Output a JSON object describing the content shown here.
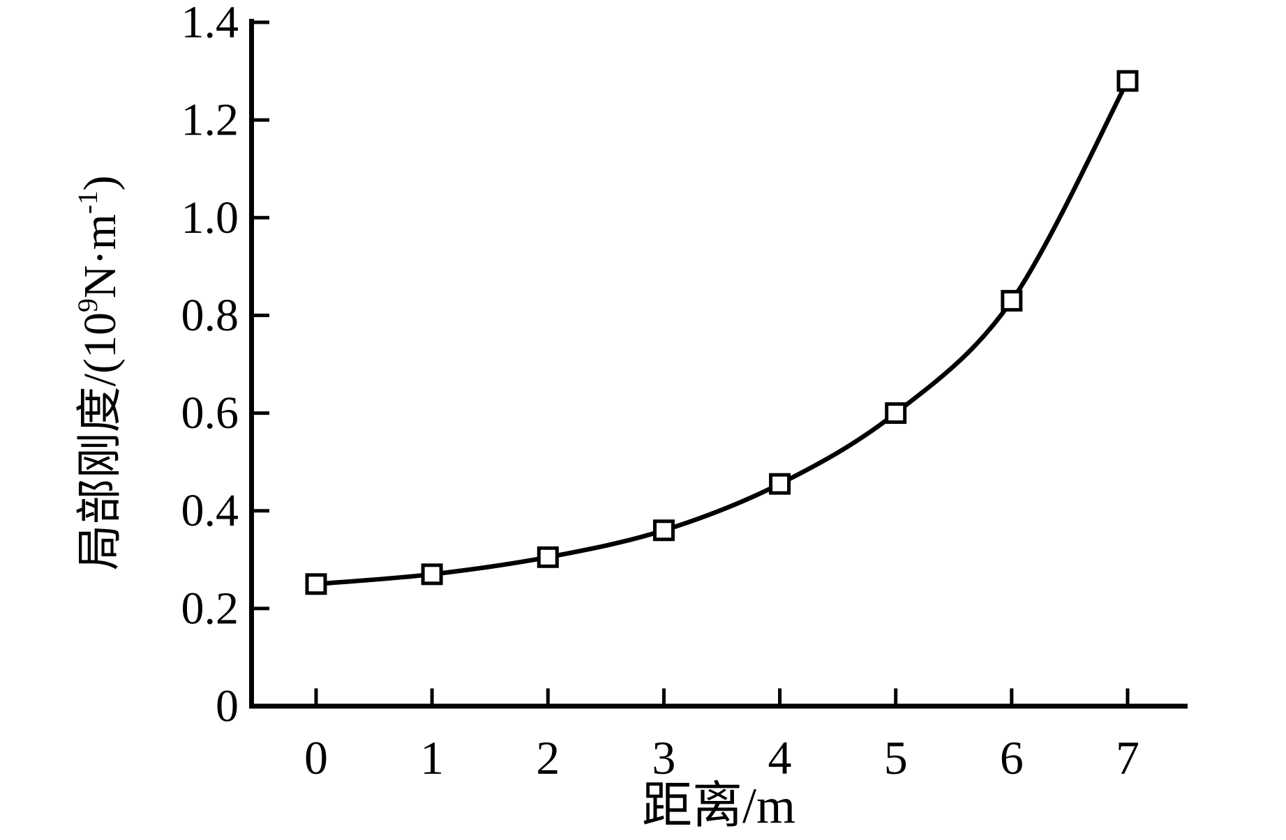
{
  "figure": {
    "background_color": "#ffffff",
    "ink_color": "#000000"
  },
  "chart_data": {
    "type": "line",
    "title": "",
    "xlabel": "距离/m",
    "ylabel": "局部刚度/(10⁹N·m⁻¹)",
    "ylabel_parts": [
      {
        "t": "局部刚度/(10",
        "sup": false
      },
      {
        "t": "9",
        "sup": true
      },
      {
        "t": "N·m",
        "sup": false
      },
      {
        "t": "-1",
        "sup": true
      },
      {
        "t": ")",
        "sup": false
      }
    ],
    "x": [
      0,
      1,
      2,
      3,
      4,
      5,
      6,
      7
    ],
    "y": [
      0.25,
      0.27,
      0.305,
      0.36,
      0.455,
      0.6,
      0.83,
      1.28
    ],
    "series_marker": "open-square",
    "line_color": "#000000",
    "marker_fill": "#ffffff",
    "xlim": [
      -0.58,
      7.52
    ],
    "ylim": [
      0,
      1.41
    ],
    "xticks": {
      "values": [
        0,
        1,
        2,
        3,
        4,
        5,
        6,
        7
      ],
      "labels": [
        "0",
        "1",
        "2",
        "3",
        "4",
        "5",
        "6",
        "7"
      ]
    },
    "yticks": {
      "values": [
        0,
        0.2,
        0.4,
        0.6,
        0.8,
        1.0,
        1.2,
        1.4
      ],
      "labels": [
        "0",
        "0.2",
        "0.4",
        "0.6",
        "0.8",
        "1.0",
        "1.2",
        "1.4"
      ]
    },
    "grid": false,
    "legend": null
  }
}
